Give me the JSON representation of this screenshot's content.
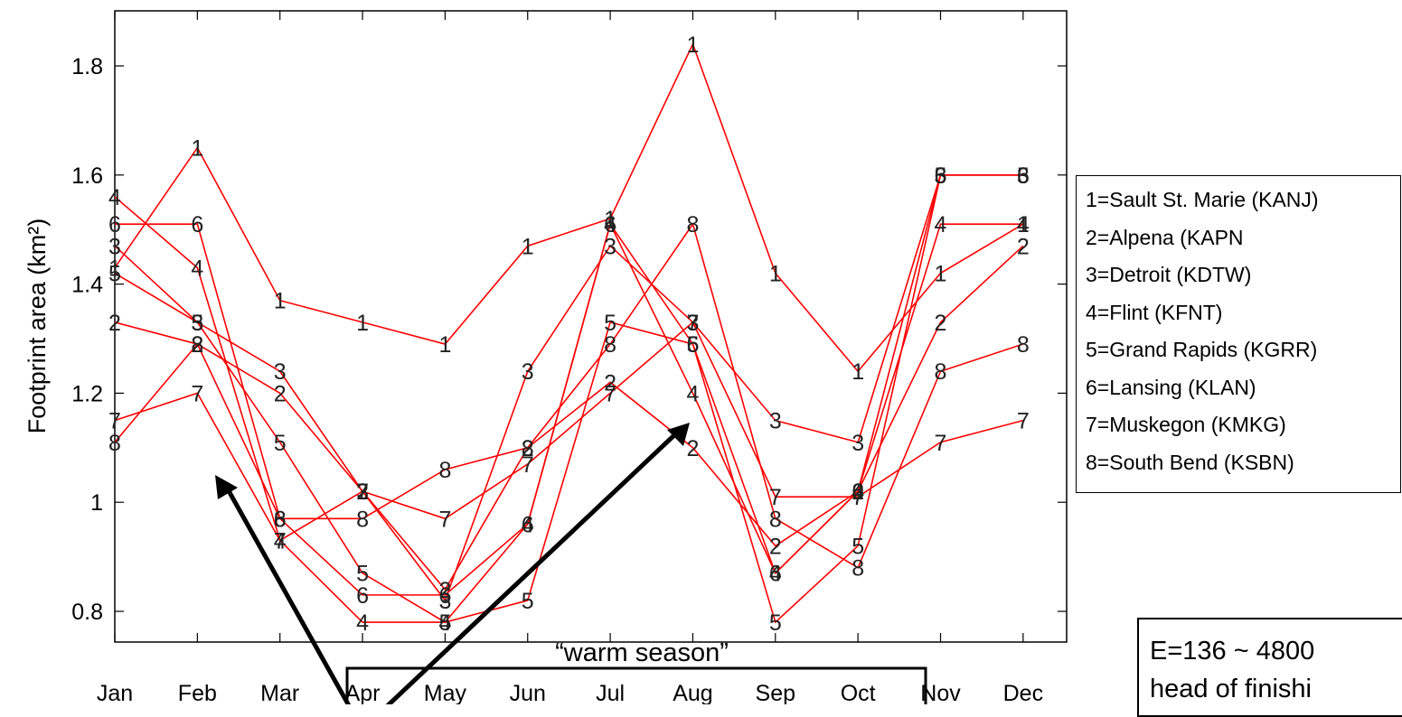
{
  "chart_data": {
    "type": "line",
    "title": "",
    "xlabel": "",
    "ylabel": "Footprint area (km²)",
    "ylim": [
      0.7,
      1.9
    ],
    "yticks": [
      0.8,
      1.0,
      1.2,
      1.4,
      1.6,
      1.8
    ],
    "ytick_labels": [
      "0.8",
      "1",
      "1.2",
      "1.4",
      "1.6",
      "1.8"
    ],
    "categories": [
      "Jan",
      "Feb",
      "Mar",
      "Apr",
      "May",
      "Jun",
      "Jul",
      "Aug",
      "Sep",
      "Oct",
      "Nov",
      "Dec"
    ],
    "line_color": "#ff0000",
    "grid": false,
    "legend_position": "right",
    "series": [
      {
        "name": "1",
        "values": [
          1.43,
          1.65,
          1.37,
          1.33,
          1.29,
          1.47,
          1.52,
          1.84,
          1.42,
          1.24,
          1.42,
          1.51
        ]
      },
      {
        "name": "2",
        "values": [
          1.33,
          1.29,
          1.2,
          1.02,
          0.84,
          1.1,
          1.22,
          1.1,
          0.92,
          1.02,
          1.33,
          1.47
        ]
      },
      {
        "name": "3",
        "values": [
          1.47,
          1.33,
          1.24,
          1.02,
          0.82,
          1.24,
          1.47,
          1.33,
          1.15,
          1.11,
          1.6,
          1.6
        ]
      },
      {
        "name": "4",
        "values": [
          1.56,
          1.43,
          0.93,
          0.78,
          0.78,
          0.96,
          1.51,
          1.2,
          0.87,
          1.02,
          1.51,
          1.51
        ]
      },
      {
        "name": "5",
        "values": [
          1.42,
          1.33,
          1.11,
          0.87,
          0.78,
          0.82,
          1.33,
          1.29,
          0.78,
          0.92,
          1.6,
          1.6
        ]
      },
      {
        "name": "6",
        "values": [
          1.51,
          1.51,
          0.97,
          0.83,
          0.83,
          0.96,
          1.51,
          1.29,
          0.87,
          1.02,
          1.6,
          1.6
        ]
      },
      {
        "name": "7",
        "values": [
          1.15,
          1.2,
          0.93,
          1.02,
          0.97,
          1.07,
          1.2,
          1.33,
          1.01,
          1.01,
          1.11,
          1.15
        ]
      },
      {
        "name": "8",
        "values": [
          1.11,
          1.29,
          0.97,
          0.97,
          1.06,
          1.1,
          1.29,
          1.51,
          0.97,
          0.88,
          1.24,
          1.29
        ]
      }
    ],
    "annotation": "“warm season”"
  },
  "legend": [
    "1=Sault St. Marie (KANJ)",
    "2=Alpena (KAPN",
    "3=Detroit (KDTW)",
    "4=Flint (KFNT)",
    "5=Grand Rapids (KGRR)",
    "6=Lansing (KLAN)",
    "7=Muskegon (KMKG)",
    "8=South Bend (KSBN)"
  ],
  "note": {
    "line1": "E=136 ~ 4800",
    "line2": "head of finishi"
  }
}
